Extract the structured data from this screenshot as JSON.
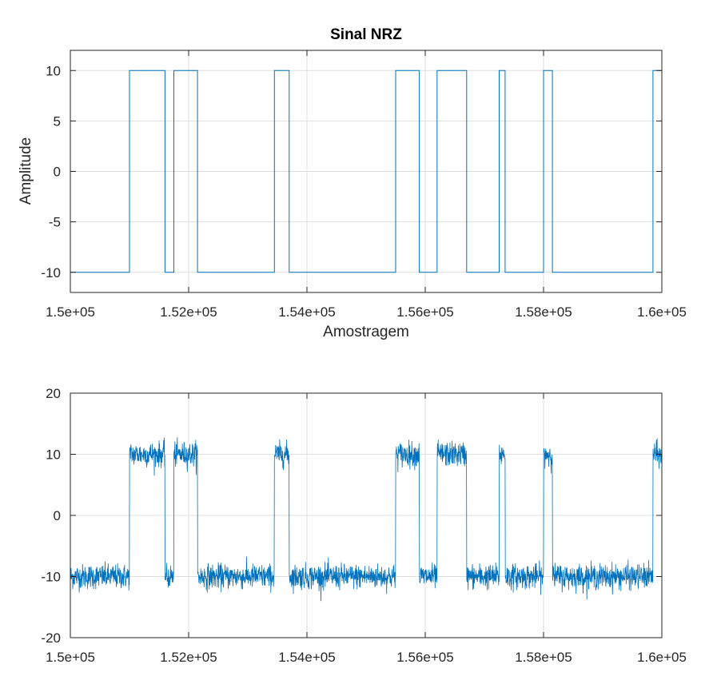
{
  "colors": {
    "series": "#0072bd",
    "axis": "#262626",
    "grid": "#dfdfdf",
    "background": "#ffffff"
  },
  "chart_data": [
    {
      "type": "line",
      "title": "Sinal NRZ",
      "xlabel": "Amostragem",
      "ylabel": "Amplitude",
      "xlim": [
        150000,
        160000
      ],
      "ylim": [
        -12,
        12
      ],
      "grid": true,
      "xticks": [
        150000,
        152000,
        154000,
        156000,
        158000,
        160000
      ],
      "xtick_labels": [
        "1.5e+05",
        "1.52e+05",
        "1.54e+05",
        "1.56e+05",
        "1.58e+05",
        "1.6e+05"
      ],
      "yticks": [
        -10,
        -5,
        0,
        5,
        10
      ],
      "ytick_labels": [
        "-10",
        "-5",
        "0",
        "5",
        "10"
      ],
      "series": [
        {
          "step_edges": [
            150000,
            151000,
            151600,
            151750,
            152150,
            153450,
            153700,
            155500,
            155900,
            156200,
            156700,
            157250,
            157350,
            158000,
            158150,
            159850,
            160000
          ],
          "levels": [
            -10,
            10,
            -10,
            10,
            -10,
            10,
            -10,
            10,
            -10,
            10,
            -10,
            10,
            -10,
            10,
            -10,
            10
          ]
        }
      ]
    },
    {
      "type": "line",
      "title": "",
      "xlabel": "",
      "ylabel": "",
      "xlim": [
        150000,
        160000
      ],
      "ylim": [
        -20,
        20
      ],
      "grid": true,
      "xticks": [
        150000,
        152000,
        154000,
        156000,
        158000,
        160000
      ],
      "xtick_labels": [
        "1.5e+05",
        "1.52e+05",
        "1.54e+05",
        "1.56e+05",
        "1.58e+05",
        "1.6e+05"
      ],
      "yticks": [
        -20,
        -10,
        0,
        10,
        20
      ],
      "ytick_labels": [
        "-20",
        "-10",
        "0",
        "10",
        "20"
      ],
      "series": [
        {
          "step_edges": [
            150000,
            151000,
            151600,
            151750,
            152150,
            153450,
            153700,
            155500,
            155900,
            156200,
            156700,
            157250,
            157350,
            158000,
            158150,
            159850,
            160000
          ],
          "levels": [
            -10,
            10,
            -10,
            10,
            -10,
            10,
            -10,
            10,
            -10,
            10,
            -10,
            10,
            -10,
            10,
            -10,
            10
          ],
          "noise_amplitude": 1
        }
      ]
    }
  ]
}
